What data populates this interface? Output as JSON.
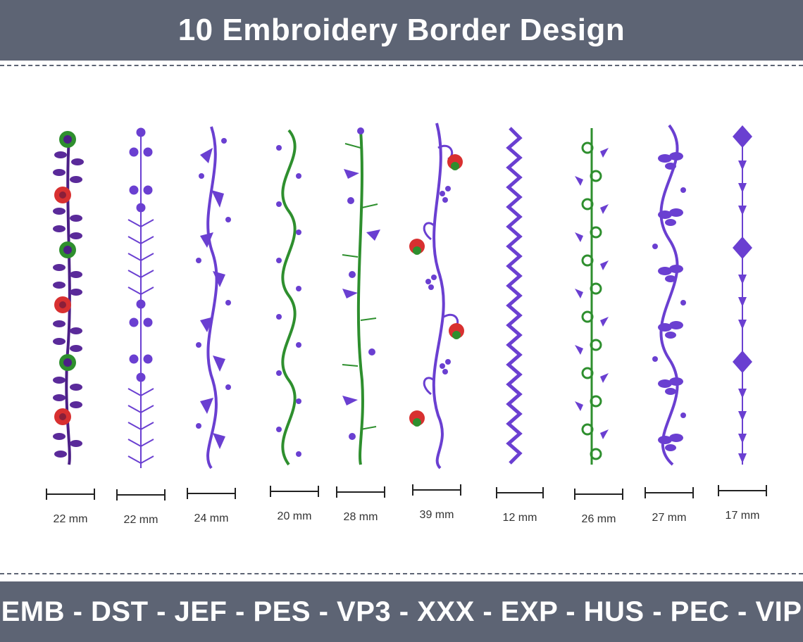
{
  "title": "10 Embroidery Border Design",
  "formats": "EMB - DST - JEF - PES - VP3 - XXX - EXP - HUS - PEC - VIP",
  "colors": {
    "band": "#5d6474",
    "violet": "#6a3fd1",
    "dark_purple": "#4b1f86",
    "green": "#2e8f2e",
    "red": "#d83030"
  },
  "borders": [
    {
      "width_label": "22 mm",
      "motif": "leaf-flower-border"
    },
    {
      "width_label": "22 mm",
      "motif": "dot-cluster-border"
    },
    {
      "width_label": "24 mm",
      "motif": "leaf-vine-border"
    },
    {
      "width_label": "20 mm",
      "motif": "green-wavy-vine-border"
    },
    {
      "width_label": "28 mm",
      "motif": "green-stem-bud-border"
    },
    {
      "width_label": "39 mm",
      "motif": "swirl-rose-border"
    },
    {
      "width_label": "12 mm",
      "motif": "zigzag-border"
    },
    {
      "width_label": "26 mm",
      "motif": "green-spiral-border"
    },
    {
      "width_label": "27 mm",
      "motif": "wave-leaf-border"
    },
    {
      "width_label": "17 mm",
      "motif": "diamond-border"
    }
  ]
}
